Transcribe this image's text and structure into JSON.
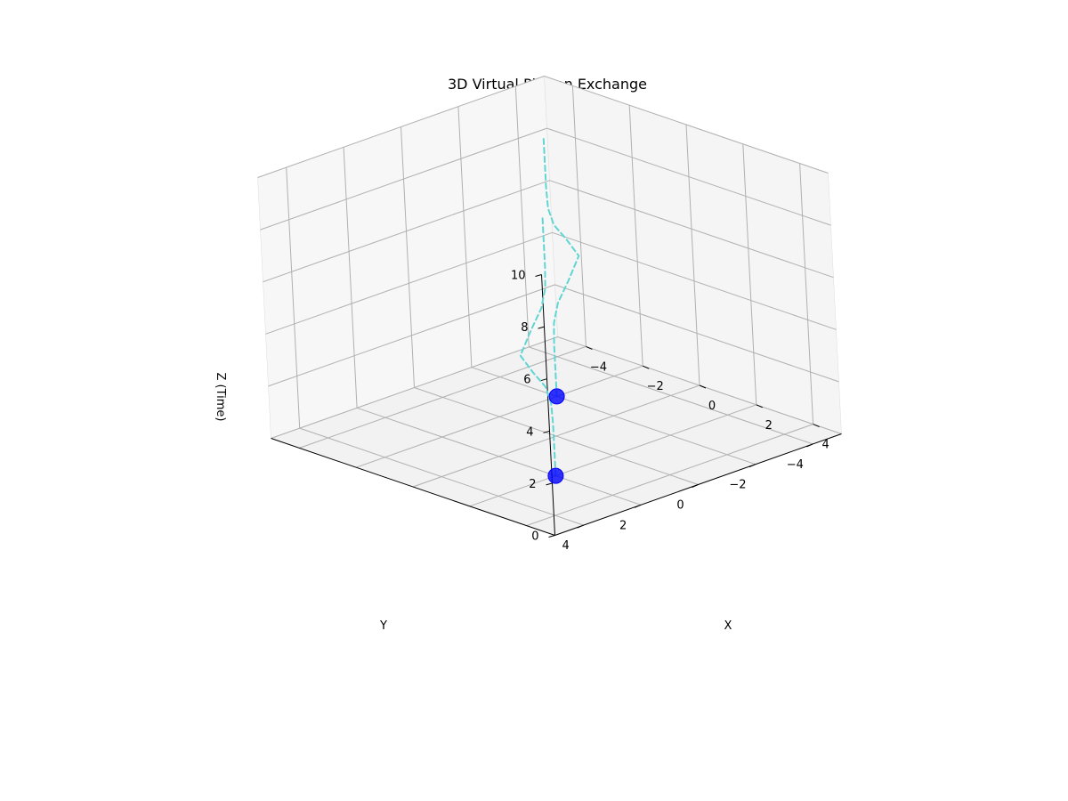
{
  "chart_data": {
    "type": "scatter",
    "projection": "3d",
    "title": "3D Virtual Photon Exchange",
    "xlabel": "X",
    "ylabel": "Y",
    "zlabel": "Z (Time)",
    "xlim": [
      -5,
      5
    ],
    "ylim": [
      -5,
      5
    ],
    "zlim": [
      0,
      10
    ],
    "x_ticks": [
      -4,
      -2,
      0,
      2,
      4
    ],
    "y_ticks": [
      -4,
      -2,
      0,
      2,
      4
    ],
    "z_ticks": [
      0,
      2,
      4,
      6,
      8,
      10
    ],
    "x_tick_labels": [
      "−4",
      "−2",
      "0",
      "2",
      "4"
    ],
    "y_tick_labels": [
      "−4",
      "−2",
      "0",
      "2",
      "4"
    ],
    "z_tick_labels": [
      "0",
      "2",
      "4",
      "6",
      "8",
      "10"
    ],
    "grid": true,
    "view": {
      "elev": 20,
      "azim": -135
    },
    "particles": [
      {
        "x": 2,
        "y": 2,
        "z": 0,
        "color": "#0000ff"
      },
      {
        "x": -2,
        "y": -2,
        "z": 0,
        "color": "#0000ff"
      }
    ],
    "worldlines": [
      {
        "color": "#5fd6d3",
        "style": "dashed",
        "x": [
          2,
          2,
          2,
          2,
          2,
          2,
          2,
          2,
          2,
          2,
          2,
          2,
          2
        ],
        "y": [
          2,
          2,
          2,
          2.03,
          2.2,
          2.6,
          3.0,
          2.6,
          2.2,
          2.03,
          2,
          2,
          2
        ],
        "z": [
          0,
          1,
          2,
          2.8,
          3.5,
          4.2,
          5.0,
          5.8,
          6.5,
          7.2,
          8.0,
          9.0,
          10.0
        ]
      },
      {
        "color": "#5fd6d3",
        "style": "dashed",
        "x": [
          -2,
          -2,
          -2,
          -2,
          -2,
          -2,
          -2,
          -2,
          -2,
          -2,
          -2,
          -2,
          -2
        ],
        "y": [
          -2,
          -2,
          -2,
          -2.03,
          -2.2,
          -2.6,
          -3.0,
          -2.6,
          -2.2,
          -2.03,
          -2,
          -2,
          -2
        ],
        "z": [
          0,
          1,
          2,
          2.8,
          3.5,
          4.2,
          5.0,
          5.8,
          6.5,
          7.2,
          8.0,
          9.0,
          10.0
        ]
      }
    ]
  }
}
